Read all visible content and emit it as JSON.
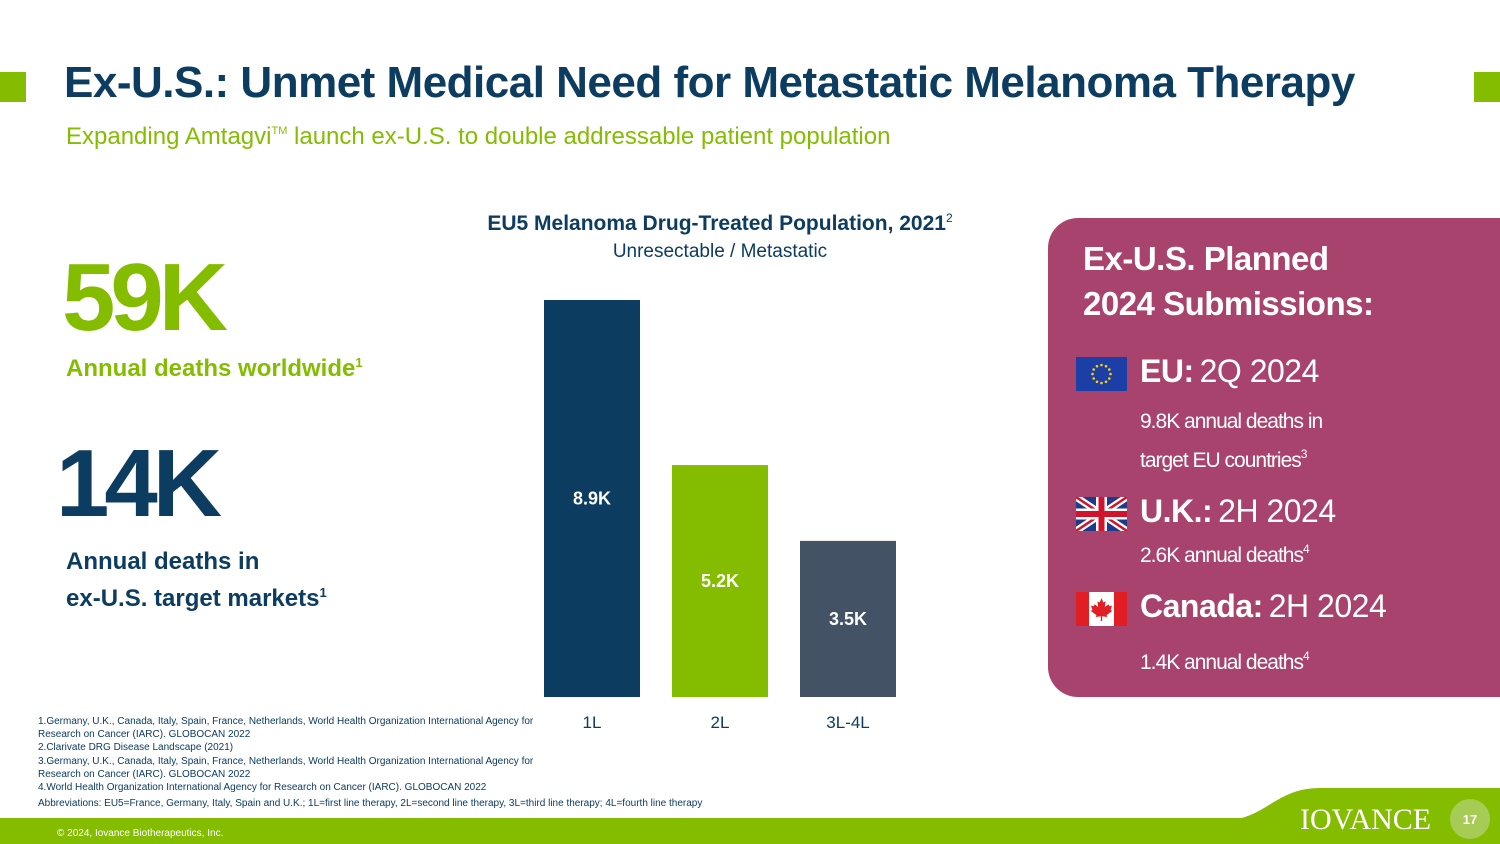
{
  "header": {
    "title": "Ex-U.S.: Unmet Medical Need for Metastatic Melanoma Therapy",
    "subtitle_pre": "Expanding Amtagvi",
    "subtitle_tm": "TM",
    "subtitle_post": " launch ex-U.S. to double addressable patient population"
  },
  "stats": [
    {
      "value": "59K",
      "label": "Annual deaths worldwide",
      "ref": "1"
    },
    {
      "value": "14K",
      "label_line1": "Annual deaths in",
      "label_line2": "ex-U.S. target markets",
      "ref": "1"
    }
  ],
  "chart_data": {
    "type": "bar",
    "title": "EU5 Melanoma Drug-Treated Population, 2021",
    "title_ref": "2",
    "subtitle": "Unresectable / Metastatic",
    "categories": [
      "1L",
      "2L",
      "3L-4L"
    ],
    "values": [
      8.9,
      5.2,
      3.5
    ],
    "value_labels": [
      "8.9K",
      "5.2K",
      "3.5K"
    ],
    "unit": "K",
    "colors": [
      "#0c3c60",
      "#84bd00",
      "#435365"
    ],
    "ylim": [
      0,
      8.9
    ],
    "grid": false,
    "legend": "none"
  },
  "panel": {
    "heading_line1": "Ex-U.S. Planned",
    "heading_line2": "2024 Submissions:",
    "background": "#a8436e",
    "items": [
      {
        "region": "EU:",
        "date": "2Q 2024",
        "note_line1": "9.8K annual deaths  in",
        "note_line2": "target EU countries",
        "ref": "3",
        "flag_icon": "eu-flag-icon"
      },
      {
        "region": "U.K.:",
        "date": "2H 2024",
        "note_line1": "2.6K annual deaths",
        "ref": "4",
        "flag_icon": "uk-flag-icon"
      },
      {
        "region": "Canada:",
        "date": "2H 2024",
        "note_line1": "1.4K annual deaths",
        "ref": "4",
        "flag_icon": "canada-flag-icon"
      }
    ]
  },
  "footnotes": [
    "1.Germany, U.K., Canada, Italy, Spain, France, Netherlands, World Health Organization International Agency for Research on Cancer (IARC). GLOBOCAN 2022",
    "2.Clarivate DRG Disease Landscape (2021)",
    "3.Germany, U.K., Canada, Italy, Spain, France, Netherlands, World Health Organization International Agency for Research on Cancer (IARC). GLOBOCAN 2022",
    "4.World Health Organization International Agency for Research on Cancer (IARC). GLOBOCAN 2022"
  ],
  "abbreviations": "Abbreviations: EU5=France, Germany, Italy, Spain and U.K.; 1L=first line therapy, 2L=second line therapy, 3L=third line therapy; 4L=fourth line therapy",
  "footer": {
    "copyright": "© 2024, Iovance Biotherapeutics, Inc.",
    "logo": "IOVANCE",
    "page_number": "17"
  },
  "colors": {
    "navy": "#0c3c60",
    "green": "#84bd00",
    "slate": "#435365",
    "magenta": "#a8436e"
  }
}
